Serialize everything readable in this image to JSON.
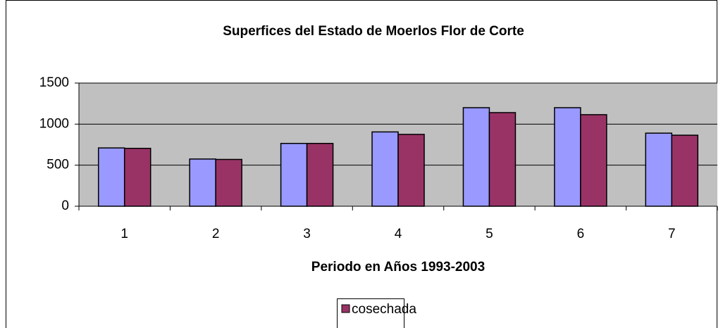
{
  "chart_data": {
    "type": "bar",
    "title": "Superfices del Estado de Moerlos Flor de Corte",
    "x_label": "Periodo en Años 1993-2003",
    "categories": [
      "1",
      "2",
      "3",
      "4",
      "5",
      "6",
      "7"
    ],
    "series": [
      {
        "color": "#9999ff",
        "values": [
          710,
          575,
          765,
          905,
          1200,
          1200,
          890
        ]
      },
      {
        "name": "cosechada",
        "color": "#993366",
        "values": [
          705,
          570,
          765,
          875,
          1140,
          1115,
          865
        ]
      }
    ],
    "ylim": [
      0,
      1500
    ],
    "yticks": [
      0,
      500,
      1000,
      1500
    ],
    "grid": true
  }
}
